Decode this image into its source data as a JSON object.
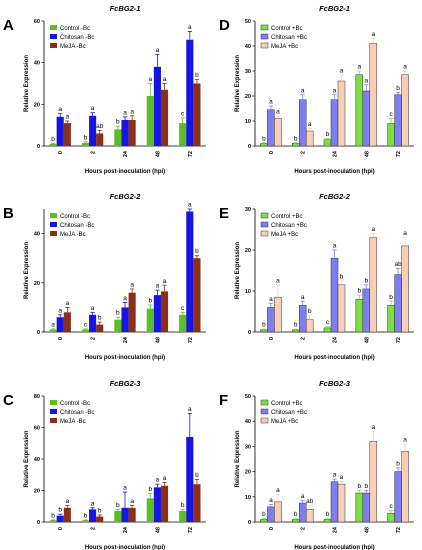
{
  "chart_data": [
    {
      "id": "A",
      "type": "bar",
      "title": "FcBG2-1",
      "xlabel": "Hours post-inoculation (hpi)",
      "ylabel": "Relative Expression",
      "categories": [
        "0",
        "2",
        "24",
        "48",
        "72"
      ],
      "ylim": [
        0,
        60
      ],
      "yticks": [
        0,
        20,
        40,
        60
      ],
      "legend": "top-left",
      "series": [
        {
          "name": "Control -Bc",
          "color": "#5bbf21",
          "values": [
            1,
            1.5,
            8,
            24,
            11
          ],
          "errors": [
            0.3,
            0.5,
            1.5,
            6,
            2.5
          ],
          "letters": [
            "b",
            "b",
            "b",
            "a",
            "c"
          ]
        },
        {
          "name": "Chitosan -Bc",
          "color": "#1616e0",
          "values": [
            14,
            14.5,
            12.5,
            38,
            51
          ],
          "errors": [
            1.5,
            1.5,
            1.5,
            6,
            4
          ],
          "letters": [
            "a",
            "a",
            "a",
            "a",
            "a"
          ]
        },
        {
          "name": "MeJA -Bc",
          "color": "#8b2f16",
          "values": [
            11,
            6,
            12.5,
            27,
            30
          ],
          "errors": [
            1,
            1.5,
            2,
            3,
            2
          ],
          "letters": [
            "a",
            "ab",
            "a",
            "a",
            "b"
          ]
        }
      ]
    },
    {
      "id": "B",
      "type": "bar",
      "title": "FcBG2-2",
      "xlabel": "Hours post-inoculation (hpi)",
      "ylabel": "Relative Expression",
      "categories": [
        "0",
        "2",
        "24",
        "48",
        "72"
      ],
      "ylim": [
        0,
        50
      ],
      "yticks": [
        0,
        20,
        40
      ],
      "legend": "top-left",
      "series": [
        {
          "name": "Control -Bc",
          "color": "#5bbf21",
          "values": [
            1,
            1,
            5,
            9.5,
            7
          ],
          "errors": [
            0.3,
            0.3,
            1,
            1.5,
            1
          ],
          "letters": [
            "a",
            "c",
            "b",
            "b",
            "c"
          ]
        },
        {
          "name": "Chitosan -Bc",
          "color": "#1616e0",
          "values": [
            6,
            7,
            10,
            15,
            49
          ],
          "errors": [
            1,
            1,
            2,
            2,
            1
          ],
          "letters": [
            "a",
            "a",
            "a",
            "a",
            "a"
          ]
        },
        {
          "name": "MeJA -Bc",
          "color": "#8b2f16",
          "values": [
            8,
            3,
            16,
            16.5,
            30
          ],
          "errors": [
            2,
            1,
            1.5,
            2.5,
            1
          ],
          "letters": [
            "a",
            "b",
            "a",
            "a",
            "b"
          ]
        }
      ]
    },
    {
      "id": "C",
      "type": "bar",
      "title": "FcBG2-3",
      "xlabel": "Hours post-inoculation (hpi)",
      "ylabel": "Relative Expression",
      "categories": [
        "0",
        "2",
        "24",
        "48",
        "72"
      ],
      "ylim": [
        0,
        80
      ],
      "yticks": [
        0,
        20,
        40,
        60,
        80
      ],
      "legend": "top-left",
      "series": [
        {
          "name": "Control -Bc",
          "color": "#5bbf21",
          "values": [
            1,
            1,
            7,
            15,
            7
          ],
          "errors": [
            0.3,
            0.3,
            1,
            3,
            1
          ],
          "letters": [
            "b",
            "b",
            "b",
            "b",
            "b"
          ]
        },
        {
          "name": "Chitosan -Bc",
          "color": "#1616e0",
          "values": [
            4,
            8,
            9,
            22,
            54
          ],
          "errors": [
            1,
            1,
            10,
            2,
            15
          ],
          "letters": [
            "b",
            "a",
            "a",
            "a",
            "a"
          ]
        },
        {
          "name": "MeJA -Bc",
          "color": "#8b2f16",
          "values": [
            9,
            3.5,
            9,
            23,
            24
          ],
          "errors": [
            1.5,
            1,
            1.5,
            2,
            3
          ],
          "letters": [
            "a",
            "b",
            "a",
            "a",
            "b"
          ]
        }
      ]
    },
    {
      "id": "D",
      "type": "bar",
      "title": "FcBG2-1",
      "xlabel": "Hours post-inoculation (hpi)",
      "ylabel": "Relative Expression",
      "categories": [
        "0",
        "2",
        "24",
        "48",
        "72"
      ],
      "ylim": [
        0,
        50
      ],
      "yticks": [
        0,
        10,
        20,
        30,
        40,
        50
      ],
      "legend": "top-left",
      "series": [
        {
          "name": "Control +Bc",
          "color": "#7ede48",
          "values": [
            1,
            1,
            2.5,
            28.5,
            9
          ],
          "errors": [
            0.3,
            0.3,
            0.5,
            1.5,
            2
          ],
          "letters": [
            "b",
            "b",
            "b",
            "a",
            "c"
          ]
        },
        {
          "name": "Chitosan +Bc",
          "color": "#7e7ef2",
          "values": [
            14.5,
            18.5,
            18.5,
            22,
            20.5
          ],
          "errors": [
            1.5,
            2,
            2,
            2.5,
            1
          ],
          "letters": [
            "a",
            "a",
            "a",
            "a",
            "b"
          ]
        },
        {
          "name": "MeJA +Bc",
          "color": "#f7cfb8",
          "values": [
            11,
            6,
            26,
            41,
            28.5
          ],
          "errors": [
            1,
            1,
            2.5,
            2,
            1.5
          ],
          "letters": [
            "a",
            "a",
            "a",
            "a",
            "a"
          ]
        }
      ]
    },
    {
      "id": "E",
      "type": "bar",
      "title": "FcBG2-2",
      "xlabel": "Hours post-inoculation (hpi)",
      "ylabel": "Relative Expression",
      "categories": [
        "0",
        "2",
        "24",
        "48",
        "72"
      ],
      "ylim": [
        0,
        30
      ],
      "yticks": [
        0,
        10,
        20,
        30
      ],
      "legend": "top-left",
      "series": [
        {
          "name": "Control +Bc",
          "color": "#7ede48",
          "values": [
            0.5,
            0.5,
            1,
            8,
            6.5
          ],
          "errors": [
            0.2,
            0.2,
            0.3,
            1,
            1
          ],
          "letters": [
            "b",
            "b",
            "c",
            "b",
            "b"
          ]
        },
        {
          "name": "Chitosan +Bc",
          "color": "#7e7ef2",
          "values": [
            6,
            6.5,
            18,
            10.5,
            14
          ],
          "errors": [
            1,
            1,
            2,
            1,
            1.5
          ],
          "letters": [
            "a",
            "a",
            "a",
            "b",
            "ab"
          ]
        },
        {
          "name": "MeJA +Bc",
          "color": "#f7cfb8",
          "values": [
            8.5,
            3,
            11.5,
            23,
            21
          ],
          "errors": [
            3,
            1,
            1,
            1,
            2
          ],
          "letters": [
            "a",
            "b",
            "b",
            "a",
            "a"
          ]
        }
      ]
    },
    {
      "id": "F",
      "type": "bar",
      "title": "FcBG2-3",
      "xlabel": "Hours post-inoculation (hpi)",
      "ylabel": "Relative Expression",
      "categories": [
        "0",
        "2",
        "24",
        "48",
        "72"
      ],
      "ylim": [
        0,
        50
      ],
      "yticks": [
        0,
        10,
        20,
        30,
        40,
        50
      ],
      "legend": "top-left",
      "series": [
        {
          "name": "Control +Bc",
          "color": "#7ede48",
          "values": [
            1,
            1,
            1,
            11.5,
            3.5
          ],
          "errors": [
            0.3,
            0.3,
            0.3,
            1,
            1
          ],
          "letters": [
            "b",
            "b",
            "b",
            "b",
            "c"
          ]
        },
        {
          "name": "Chitosan +Bc",
          "color": "#7e7ef2",
          "values": [
            6,
            7.5,
            16,
            11.5,
            20
          ],
          "errors": [
            1,
            1,
            1,
            1,
            1.5
          ],
          "letters": [
            "a",
            "a",
            "a",
            "b",
            "b"
          ]
        },
        {
          "name": "MeJA +Bc",
          "color": "#f7cfb8",
          "values": [
            8,
            5,
            15,
            32,
            28
          ],
          "errors": [
            3,
            1.5,
            1,
            4,
            3
          ],
          "letters": [
            "a",
            "ab",
            "a",
            "a",
            "a"
          ]
        }
      ]
    }
  ]
}
